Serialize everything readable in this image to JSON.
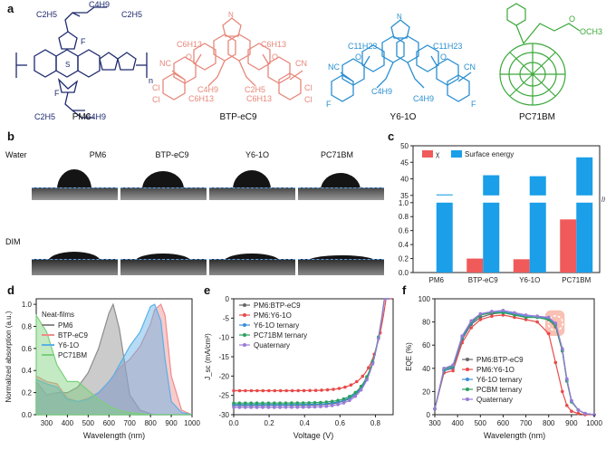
{
  "panels": {
    "a": "a",
    "b": "b",
    "c": "c",
    "d": "d",
    "e": "e",
    "f": "f"
  },
  "molecules": [
    {
      "name": "PM6",
      "color": "#1e2a6e"
    },
    {
      "name": "BTP-eC9",
      "color": "#e8877a"
    },
    {
      "name": "Y6-1O",
      "color": "#2b8fd0"
    },
    {
      "name": "PC71BM",
      "color": "#3aa83a"
    }
  ],
  "struct_labels": {
    "pm6_c2h5a": "C2H5",
    "pm6_c4h9a": "C4H9",
    "pm6_c2h5b": "C2H5",
    "pm6_c4h9b": "C4H9",
    "pm6_f": "F",
    "pm6_s": "S",
    "pm6_n": "n",
    "btp_c6h13": "C6H13",
    "btp_c4h9": "C4H9",
    "btp_c2h5": "C2H5",
    "btp_nc": "NC",
    "btp_cn": "CN",
    "btp_cl": "Cl",
    "btp_o": "O",
    "btp_n": "N",
    "y6_c11h23": "C11H23",
    "y6_c4h9": "C4H9",
    "y6_nc": "NC",
    "y6_cn": "CN",
    "y6_f": "F",
    "y6_o": "O",
    "y6_n": "N",
    "pc_o": "O",
    "pc_och3": "OCH3"
  },
  "panel_b": {
    "row_labels": [
      "Water",
      "DIM"
    ],
    "column_labels": [
      "PM6",
      "BTP-eC9",
      "Y6-1O",
      "PC71BM"
    ]
  },
  "chart_data": [
    {
      "panel": "c",
      "type": "bar",
      "categories": [
        "PM6",
        "BTP-eC9",
        "Y6-1O",
        "PC71BM"
      ],
      "series": [
        {
          "name": "χ",
          "color": "#f05a5a",
          "values": [
            null,
            0.2,
            0.19,
            0.76
          ]
        },
        {
          "name": "Surface energy",
          "color": "#1a9fe8",
          "values": [
            35.3,
            41.1,
            40.8,
            46.5
          ]
        }
      ],
      "y_lower": {
        "lim": [
          0,
          1.0
        ],
        "ticks": [
          "0.0",
          "0.2",
          "0.4",
          "0.6",
          "0.8",
          "1.0"
        ]
      },
      "y_upper": {
        "lim": [
          35,
          50
        ],
        "ticks": [
          "35",
          "40",
          "45",
          "50"
        ]
      },
      "broken_axis": true,
      "legend": "top"
    },
    {
      "panel": "d",
      "type": "area",
      "title": "Neat-films",
      "xlabel": "Wavelength (nm)",
      "ylabel": "Normalized absorption (a.u.)",
      "xlim": [
        250,
        1000
      ],
      "ylim": [
        0,
        1.05
      ],
      "xticks": [
        "300",
        "400",
        "500",
        "600",
        "700",
        "800",
        "900",
        "1000"
      ],
      "yticks": [
        "0.0",
        "0.2",
        "0.4",
        "0.6",
        "0.8",
        "1.0"
      ],
      "x": [
        250,
        300,
        350,
        400,
        450,
        500,
        550,
        600,
        620,
        650,
        700,
        750,
        800,
        820,
        850,
        870,
        900,
        950,
        1000
      ],
      "series": [
        {
          "name": "PM6",
          "color": "#8c8c8c",
          "values": [
            0.3,
            0.18,
            0.2,
            0.2,
            0.25,
            0.38,
            0.6,
            0.92,
            1.0,
            0.78,
            0.18,
            0.04,
            0.01,
            0.0,
            0.0,
            0.0,
            0.0,
            0.0,
            0.0
          ]
        },
        {
          "name": "BTP-eC9",
          "color": "#f08c8c",
          "values": [
            0.35,
            0.3,
            0.28,
            0.15,
            0.12,
            0.15,
            0.2,
            0.3,
            0.35,
            0.42,
            0.5,
            0.62,
            0.82,
            0.95,
            1.0,
            0.9,
            0.35,
            0.04,
            0.0
          ]
        },
        {
          "name": "Y6-1O",
          "color": "#5ab0e8",
          "values": [
            0.32,
            0.28,
            0.25,
            0.14,
            0.12,
            0.14,
            0.2,
            0.3,
            0.35,
            0.45,
            0.62,
            0.75,
            0.98,
            1.0,
            0.85,
            0.5,
            0.12,
            0.02,
            0.0
          ]
        },
        {
          "name": "PC71BM",
          "color": "#7ad07a",
          "values": [
            0.9,
            0.75,
            0.45,
            0.3,
            0.3,
            0.22,
            0.14,
            0.08,
            0.06,
            0.04,
            0.02,
            0.01,
            0.0,
            0.0,
            0.0,
            0.0,
            0.0,
            0.0,
            0.0
          ]
        }
      ]
    },
    {
      "panel": "e",
      "type": "line",
      "xlabel": "Voltage (V)",
      "ylabel": "J_sc (mA/cm²)",
      "xlim": [
        0,
        0.9
      ],
      "ylim": [
        -30,
        0
      ],
      "xticks": [
        "0.0",
        "0.2",
        "0.4",
        "0.6",
        "0.8"
      ],
      "yticks": [
        "-30",
        "-25",
        "-20",
        "-15",
        "-10",
        "-5",
        "0"
      ],
      "series": [
        {
          "name": "PM6:BTP-eC9",
          "color": "#666666",
          "jsc": 27.6,
          "voc": 0.85
        },
        {
          "name": "PM6:Y6-1O",
          "color": "#e84a4a",
          "jsc": 23.8,
          "voc": 0.86
        },
        {
          "name": "Y6-1O ternary",
          "color": "#3a8fd8",
          "jsc": 27.4,
          "voc": 0.85
        },
        {
          "name": "PC71BM ternary",
          "color": "#2aa060",
          "jsc": 27.0,
          "voc": 0.85
        },
        {
          "name": "Quaternary",
          "color": "#9a7ad8",
          "jsc": 28.1,
          "voc": 0.85
        }
      ]
    },
    {
      "panel": "f",
      "type": "line",
      "xlabel": "Wavelength (nm)",
      "ylabel": "EQE (%)",
      "xlim": [
        300,
        1000
      ],
      "ylim": [
        0,
        100
      ],
      "xticks": [
        "300",
        "400",
        "500",
        "600",
        "700",
        "800",
        "900",
        "1000"
      ],
      "yticks": [
        "0",
        "20",
        "40",
        "60",
        "80",
        "100"
      ],
      "x": [
        300,
        340,
        380,
        420,
        460,
        500,
        550,
        600,
        650,
        700,
        750,
        800,
        830,
        860,
        880,
        900,
        930,
        960,
        1000
      ],
      "series": [
        {
          "name": "PM6:BTP-eC9",
          "color": "#666666",
          "values": [
            5,
            38,
            40,
            65,
            78,
            84,
            87,
            88,
            86,
            84,
            84,
            82,
            76,
            55,
            30,
            12,
            4,
            1,
            0
          ]
        },
        {
          "name": "PM6:Y6-1O",
          "color": "#e84a4a",
          "values": [
            5,
            36,
            38,
            62,
            75,
            82,
            85,
            86,
            84,
            82,
            80,
            70,
            45,
            20,
            8,
            3,
            1,
            0,
            0
          ]
        },
        {
          "name": "Y6-1O ternary",
          "color": "#3a8fd8",
          "values": [
            5,
            38,
            41,
            66,
            79,
            86,
            89,
            89,
            87,
            85,
            85,
            83,
            78,
            56,
            30,
            12,
            4,
            1,
            0
          ]
        },
        {
          "name": "PCBM ternary",
          "color": "#2aa060",
          "values": [
            5,
            39,
            42,
            67,
            80,
            86,
            88,
            88,
            86,
            84,
            84,
            82,
            77,
            55,
            29,
            11,
            4,
            1,
            0
          ]
        },
        {
          "name": "Quaternary",
          "color": "#9a7ad8",
          "values": [
            5,
            40,
            43,
            68,
            81,
            87,
            89,
            90,
            88,
            86,
            85,
            84,
            79,
            57,
            31,
            12,
            4,
            1,
            0
          ]
        }
      ]
    }
  ]
}
